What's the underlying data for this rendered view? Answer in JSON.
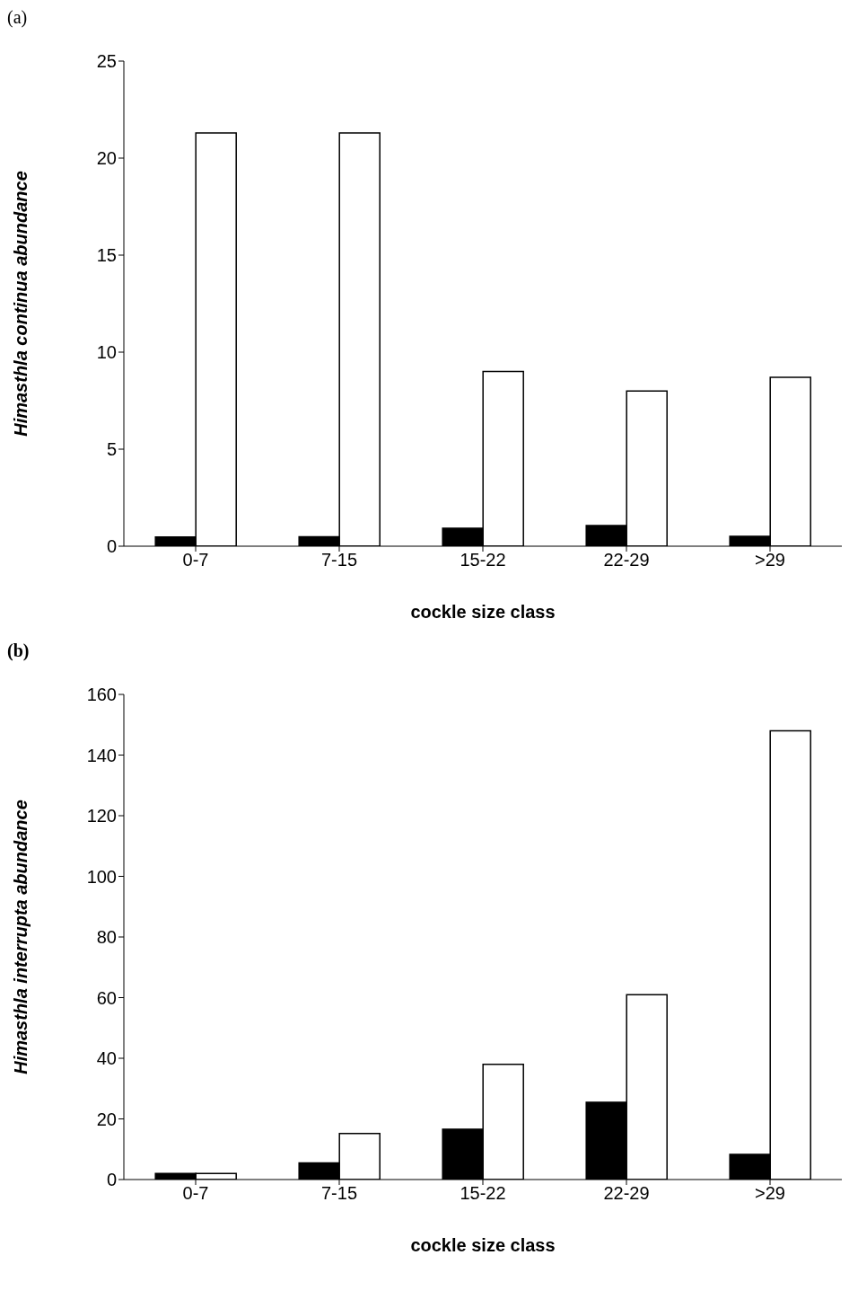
{
  "chart_data": [
    {
      "type": "bar",
      "title": "(a)",
      "xlabel": "cockle size class",
      "ylabel": "Himasthla continua abundance",
      "categories": [
        "0-7",
        "7-15",
        "15-22",
        "22-29",
        ">29"
      ],
      "series": [
        {
          "color": "#000000",
          "values": [
            0.47,
            0.49,
            0.93,
            1.07,
            0.51
          ]
        },
        {
          "color": "#ffffff",
          "values": [
            21.3,
            21.3,
            9.0,
            8.0,
            8.7
          ]
        }
      ],
      "ylim": [
        0,
        25
      ],
      "yticks": [
        0,
        5,
        10,
        15,
        20,
        25
      ],
      "grid": false,
      "legend": false
    },
    {
      "type": "bar",
      "title": "(b)",
      "xlabel": "cockle size class",
      "ylabel": "Himasthla interrupta abundance",
      "categories": [
        "0-7",
        "7-15",
        "15-22",
        "22-29",
        ">29"
      ],
      "series": [
        {
          "color": "#000000",
          "values": [
            2.0,
            5.5,
            16.6,
            25.5,
            8.3
          ]
        },
        {
          "color": "#ffffff",
          "values": [
            2.0,
            15.2,
            38,
            61,
            148
          ]
        }
      ],
      "ylim": [
        0,
        160
      ],
      "yticks": [
        0,
        20,
        40,
        60,
        80,
        100,
        120,
        140,
        160
      ],
      "grid": false,
      "legend": false
    }
  ]
}
